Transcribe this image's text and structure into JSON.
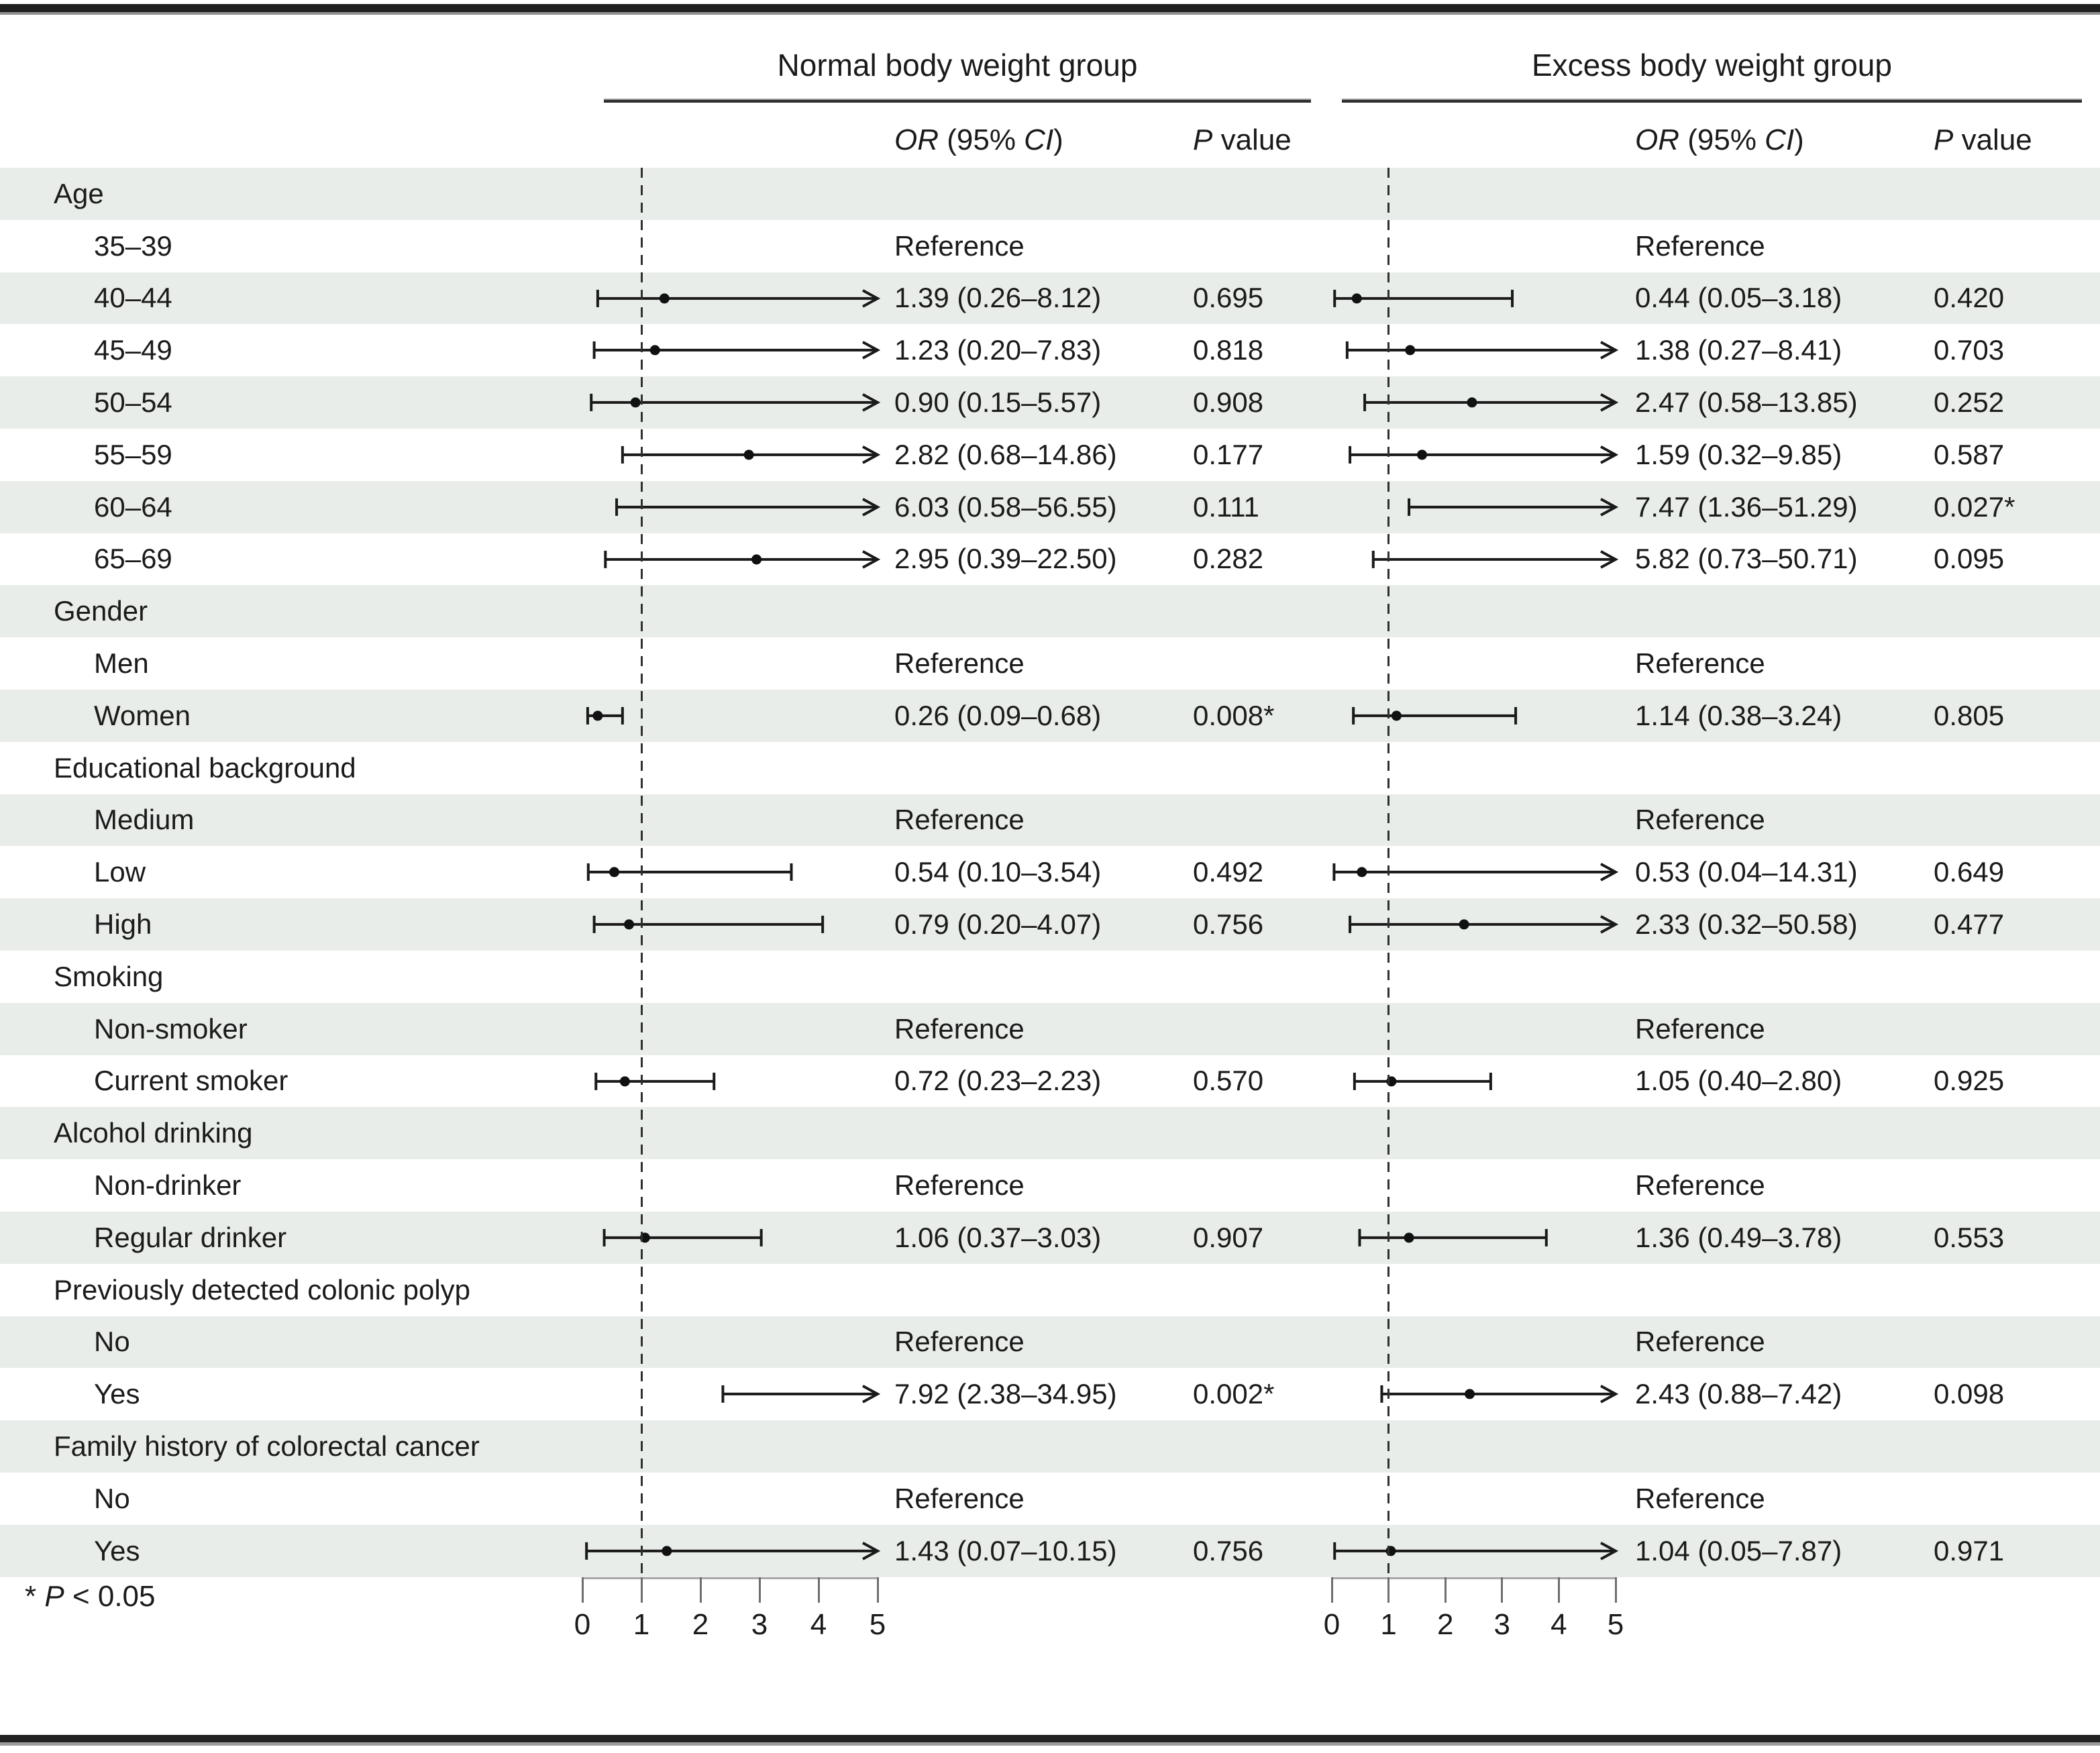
{
  "figure": {
    "footnote": "* P < 0.05"
  },
  "colors": {
    "row_stripe": "#e9ede9",
    "bar": "#1a1a1a",
    "dot": "#111111",
    "axis_line": "#a8a8a8",
    "tick": "#6e6e6e",
    "reference_dash": "#2f2f2f",
    "text": "#1b1b1b"
  },
  "chart_data": {
    "type": "scatter",
    "variant": "forest-plot",
    "title": "",
    "xlabel": "",
    "xlim": [
      0,
      5
    ],
    "x_ticks": [
      "0",
      "1",
      "2",
      "3",
      "4",
      "5"
    ],
    "reference_line_x": 1,
    "arrow_note": "upper CI bounds beyond 5 are drawn as right arrows",
    "panels": [
      {
        "id": "normal",
        "title": "Normal body weight group",
        "or_header": "OR (95% CI)",
        "p_header": "P value"
      },
      {
        "id": "excess",
        "title": "Excess body weight group",
        "or_header": "OR (95% CI)",
        "p_header": "P value"
      }
    ],
    "rows": [
      {
        "label": "Age",
        "section": true
      },
      {
        "label": "35–39",
        "normal": {
          "or": "Reference"
        },
        "excess": {
          "or": "Reference"
        }
      },
      {
        "label": "40–44",
        "normal": {
          "or": "1.39 (0.26–8.12)",
          "p": "0.695",
          "est": 1.39,
          "lo": 0.26,
          "hi": 8.12
        },
        "excess": {
          "or": "0.44 (0.05–3.18)",
          "p": "0.420",
          "est": 0.44,
          "lo": 0.05,
          "hi": 3.18
        }
      },
      {
        "label": "45–49",
        "normal": {
          "or": "1.23 (0.20–7.83)",
          "p": "0.818",
          "est": 1.23,
          "lo": 0.2,
          "hi": 7.83
        },
        "excess": {
          "or": "1.38 (0.27–8.41)",
          "p": "0.703",
          "est": 1.38,
          "lo": 0.27,
          "hi": 8.41
        }
      },
      {
        "label": "50–54",
        "normal": {
          "or": "0.90 (0.15–5.57)",
          "p": "0.908",
          "est": 0.9,
          "lo": 0.15,
          "hi": 5.57
        },
        "excess": {
          "or": "2.47 (0.58–13.85)",
          "p": "0.252",
          "est": 2.47,
          "lo": 0.58,
          "hi": 13.85
        }
      },
      {
        "label": "55–59",
        "normal": {
          "or": "2.82 (0.68–14.86)",
          "p": "0.177",
          "est": 2.82,
          "lo": 0.68,
          "hi": 14.86
        },
        "excess": {
          "or": "1.59 (0.32–9.85)",
          "p": "0.587",
          "est": 1.59,
          "lo": 0.32,
          "hi": 9.85
        }
      },
      {
        "label": "60–64",
        "normal": {
          "or": "6.03 (0.58–56.55)",
          "p": "0.111",
          "est": 6.03,
          "lo": 0.58,
          "hi": 56.55
        },
        "excess": {
          "or": "7.47 (1.36–51.29)",
          "p": "0.027*",
          "est": 7.47,
          "lo": 1.36,
          "hi": 51.29
        }
      },
      {
        "label": "65–69",
        "normal": {
          "or": "2.95 (0.39–22.50)",
          "p": "0.282",
          "est": 2.95,
          "lo": 0.39,
          "hi": 22.5
        },
        "excess": {
          "or": "5.82 (0.73–50.71)",
          "p": "0.095",
          "est": 5.82,
          "lo": 0.73,
          "hi": 50.71
        }
      },
      {
        "label": "Gender",
        "section": true
      },
      {
        "label": "Men",
        "normal": {
          "or": "Reference"
        },
        "excess": {
          "or": "Reference"
        }
      },
      {
        "label": "Women",
        "normal": {
          "or": "0.26 (0.09–0.68)",
          "p": "0.008*",
          "est": 0.26,
          "lo": 0.09,
          "hi": 0.68
        },
        "excess": {
          "or": "1.14 (0.38–3.24)",
          "p": "0.805",
          "est": 1.14,
          "lo": 0.38,
          "hi": 3.24
        }
      },
      {
        "label": "Educational background",
        "section": true
      },
      {
        "label": "Medium",
        "normal": {
          "or": "Reference"
        },
        "excess": {
          "or": "Reference"
        }
      },
      {
        "label": "Low",
        "normal": {
          "or": "0.54 (0.10–3.54)",
          "p": "0.492",
          "est": 0.54,
          "lo": 0.1,
          "hi": 3.54
        },
        "excess": {
          "or": "0.53 (0.04–14.31)",
          "p": "0.649",
          "est": 0.53,
          "lo": 0.04,
          "hi": 14.31
        }
      },
      {
        "label": "High",
        "normal": {
          "or": "0.79 (0.20–4.07)",
          "p": "0.756",
          "est": 0.79,
          "lo": 0.2,
          "hi": 4.07
        },
        "excess": {
          "or": "2.33 (0.32–50.58)",
          "p": "0.477",
          "est": 2.33,
          "lo": 0.32,
          "hi": 50.58
        }
      },
      {
        "label": "Smoking",
        "section": true
      },
      {
        "label": "Non-smoker",
        "normal": {
          "or": "Reference"
        },
        "excess": {
          "or": "Reference"
        }
      },
      {
        "label": "Current smoker",
        "normal": {
          "or": "0.72 (0.23–2.23)",
          "p": "0.570",
          "est": 0.72,
          "lo": 0.23,
          "hi": 2.23
        },
        "excess": {
          "or": "1.05 (0.40–2.80)",
          "p": "0.925",
          "est": 1.05,
          "lo": 0.4,
          "hi": 2.8
        }
      },
      {
        "label": "Alcohol drinking",
        "section": true
      },
      {
        "label": "Non-drinker",
        "normal": {
          "or": "Reference"
        },
        "excess": {
          "or": "Reference"
        }
      },
      {
        "label": "Regular drinker",
        "normal": {
          "or": "1.06 (0.37–3.03)",
          "p": "0.907",
          "est": 1.06,
          "lo": 0.37,
          "hi": 3.03
        },
        "excess": {
          "or": "1.36 (0.49–3.78)",
          "p": "0.553",
          "est": 1.36,
          "lo": 0.49,
          "hi": 3.78
        }
      },
      {
        "label": "Previously detected colonic polyp",
        "section": true
      },
      {
        "label": "No",
        "normal": {
          "or": "Reference"
        },
        "excess": {
          "or": "Reference"
        }
      },
      {
        "label": "Yes",
        "normal": {
          "or": "7.92 (2.38–34.95)",
          "p": "0.002*",
          "est": 7.92,
          "lo": 2.38,
          "hi": 34.95
        },
        "excess": {
          "or": "2.43 (0.88–7.42)",
          "p": "0.098",
          "est": 2.43,
          "lo": 0.88,
          "hi": 7.42
        }
      },
      {
        "label": "Family history of colorectal cancer",
        "section": true
      },
      {
        "label": "No",
        "normal": {
          "or": "Reference"
        },
        "excess": {
          "or": "Reference"
        }
      },
      {
        "label": "Yes",
        "normal": {
          "or": "1.43 (0.07–10.15)",
          "p": "0.756",
          "est": 1.43,
          "lo": 0.07,
          "hi": 10.15
        },
        "excess": {
          "or": "1.04 (0.05–7.87)",
          "p": "0.971",
          "est": 1.04,
          "lo": 0.05,
          "hi": 7.87
        }
      }
    ]
  }
}
